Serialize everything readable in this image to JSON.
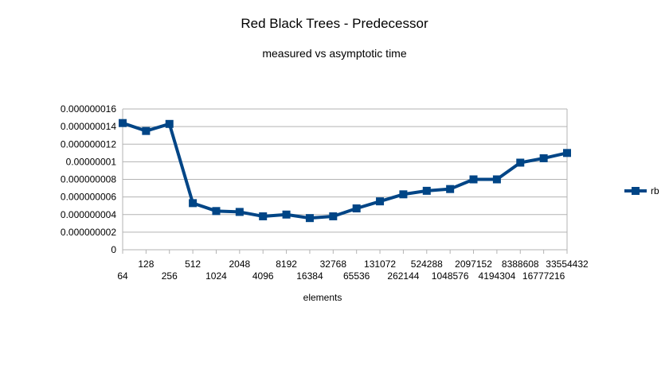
{
  "chart_data": {
    "type": "line",
    "title": "Red Black Trees - Predecessor",
    "subtitle": "measured vs asymptotic time",
    "xlabel": "elements",
    "ylabel": "",
    "categories": [
      "64",
      "128",
      "256",
      "512",
      "1024",
      "2048",
      "4096",
      "8192",
      "16384",
      "32768",
      "65536",
      "131072",
      "262144",
      "524288",
      "1048576",
      "2097152",
      "4194304",
      "8388608",
      "16777216",
      "33554432"
    ],
    "y_ticks": [
      "0",
      "0.000000002",
      "0.000000004",
      "0.000000006",
      "0.000000008",
      "0.00000001",
      "0.000000012",
      "0.000000014",
      "0.000000016"
    ],
    "ylim": [
      0,
      1.6e-08
    ],
    "grid": "horizontal",
    "legend_position": "right",
    "series": [
      {
        "name": "rb",
        "color": "#004586",
        "marker": "square",
        "values": [
          1.44e-08,
          1.35e-08,
          1.43e-08,
          5.3e-09,
          4.4e-09,
          4.3e-09,
          3.8e-09,
          4e-09,
          3.6e-09,
          3.8e-09,
          4.7e-09,
          5.5e-09,
          6.3e-09,
          6.7e-09,
          6.9e-09,
          8e-09,
          8e-09,
          9.9e-09,
          1.04e-08,
          1.1e-08
        ]
      }
    ]
  }
}
